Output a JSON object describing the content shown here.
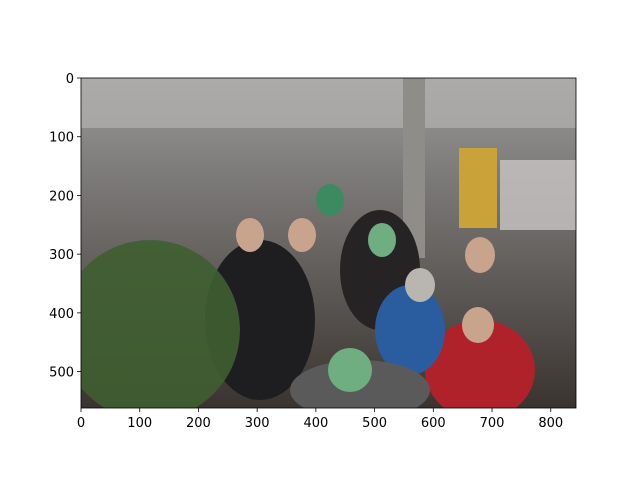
{
  "chart_data": {
    "type": "image",
    "xlim": [
      0,
      843
    ],
    "ylim": [
      562,
      0
    ],
    "xticks": [
      0,
      100,
      200,
      300,
      400,
      500,
      600,
      700,
      800
    ],
    "yticks": [
      0,
      100,
      200,
      300,
      400,
      500
    ]
  }
}
